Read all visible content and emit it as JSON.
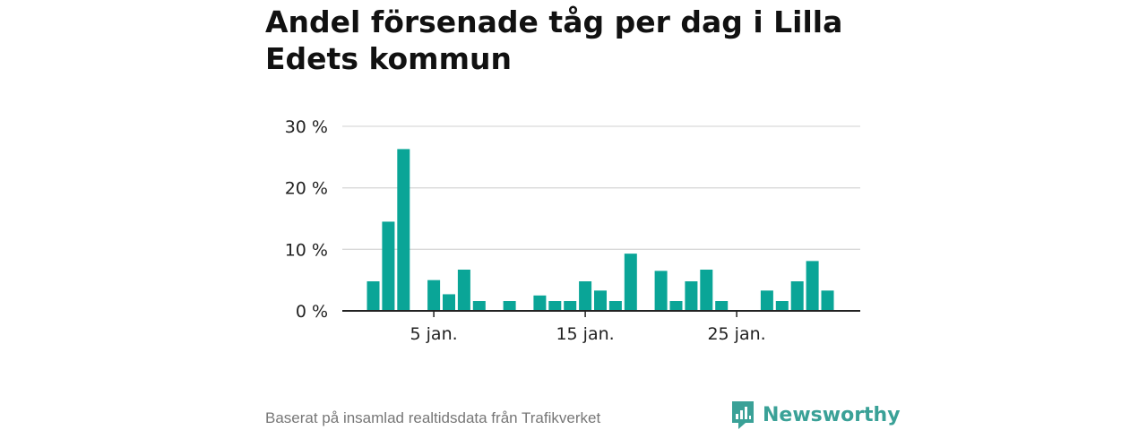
{
  "title": "Andel försenade tåg per dag i Lilla Edets kommun",
  "footer": {
    "source": "Baserat på insamlad realtidsdata från Trafikverket",
    "brand": "Newsworthy"
  },
  "colors": {
    "bar": "#0aa597",
    "grid": "#d9d9d9",
    "axis": "#222222",
    "brand": "#3aa197"
  },
  "chart_data": {
    "type": "bar",
    "x_unit": "day of January",
    "x": [
      1,
      2,
      3,
      4,
      5,
      6,
      7,
      8,
      9,
      10,
      11,
      12,
      13,
      14,
      15,
      16,
      17,
      18,
      19,
      20,
      21,
      22,
      23,
      24,
      25,
      26,
      27,
      28,
      29,
      30,
      31
    ],
    "values": [
      4.8,
      14.5,
      26.3,
      0,
      5.0,
      2.7,
      6.7,
      1.6,
      0,
      1.6,
      0,
      2.5,
      1.6,
      1.6,
      4.8,
      3.3,
      1.6,
      9.3,
      0,
      6.5,
      1.6,
      4.8,
      6.7,
      1.6,
      0,
      0,
      3.3,
      1.6,
      4.8,
      8.1,
      3.3
    ],
    "ylim": [
      0,
      30
    ],
    "y_ticks": [
      0,
      10,
      20,
      30
    ],
    "y_tick_labels": [
      "0 %",
      "10 %",
      "20 %",
      "30 %"
    ],
    "x_ticks": [
      5,
      15,
      25
    ],
    "x_tick_labels": [
      "5 jan.",
      "15 jan.",
      "25 jan."
    ],
    "grid": true
  }
}
